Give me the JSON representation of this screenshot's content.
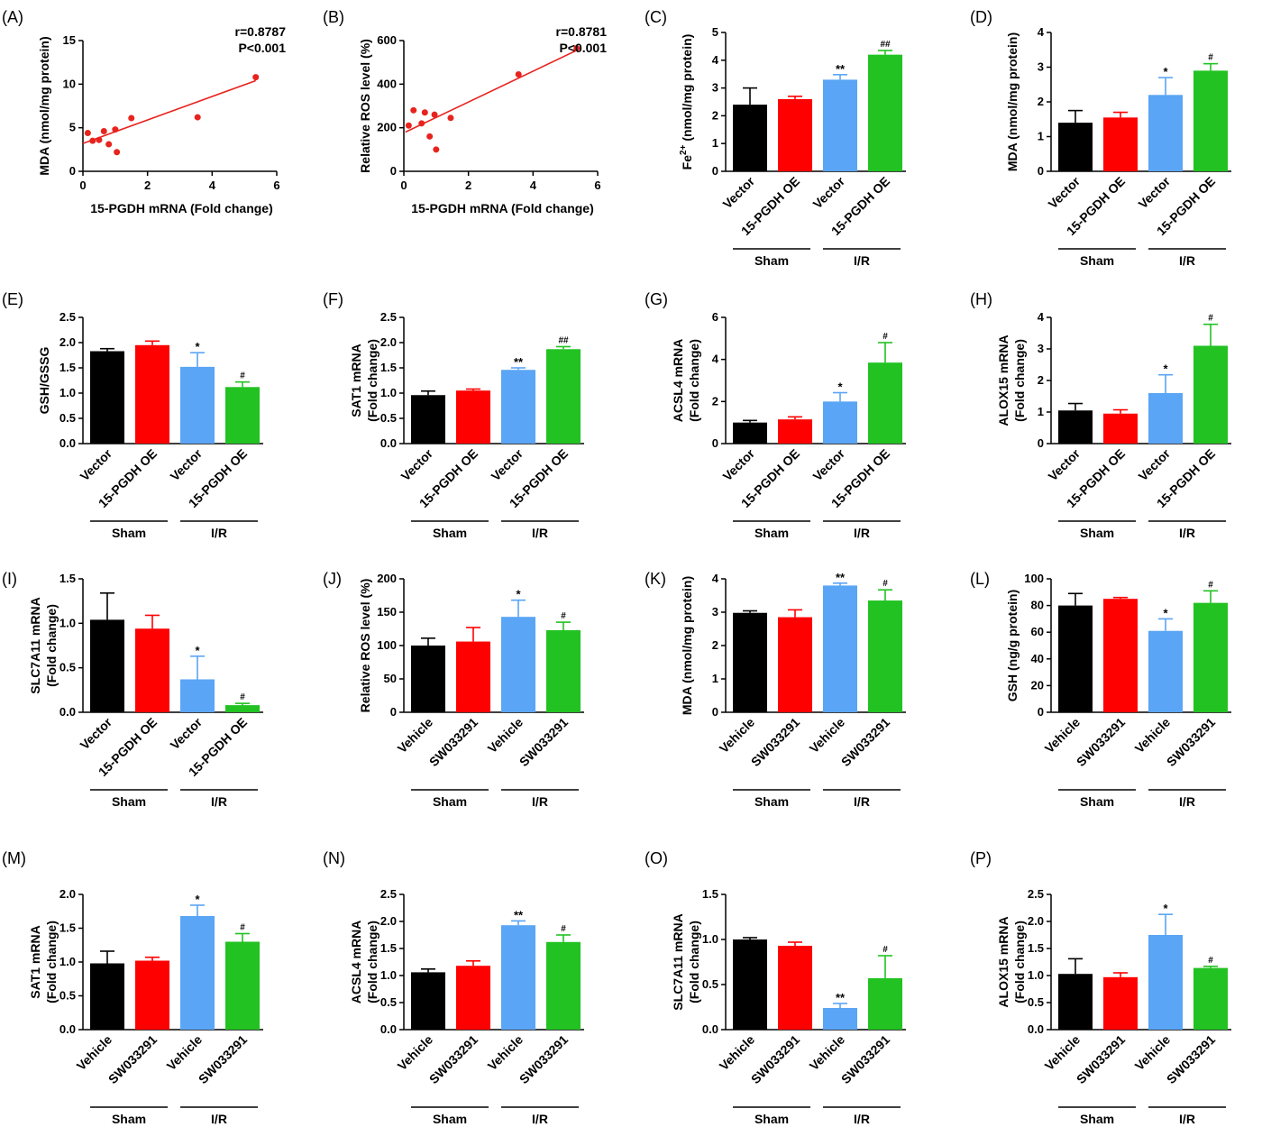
{
  "figure": {
    "colors": {
      "black": "#000000",
      "red": "#ff0000",
      "blue": "#5aa5f5",
      "green": "#22c222",
      "scatter": "#e8231e"
    }
  },
  "chart_data": [
    {
      "id": "A",
      "letter": "(A)",
      "type": "scatter",
      "ylabel": "MDA (nmol/mg protein)",
      "xlabel": "15-PGDH mRNA (Fold change)",
      "xlim": [
        0,
        6
      ],
      "ylim": [
        0,
        15
      ],
      "xticks": [
        "0",
        "2",
        "4",
        "6"
      ],
      "yticks": [
        "0",
        "5",
        "10",
        "15"
      ],
      "points": [
        [
          0.15,
          4.4
        ],
        [
          0.3,
          3.5
        ],
        [
          0.5,
          3.6
        ],
        [
          0.65,
          4.6
        ],
        [
          0.8,
          3.1
        ],
        [
          1.0,
          4.8
        ],
        [
          1.05,
          2.2
        ],
        [
          1.5,
          6.1
        ],
        [
          3.55,
          6.2
        ],
        [
          5.35,
          10.8
        ]
      ],
      "fit": [
        [
          0,
          3.2
        ],
        [
          5.35,
          10.4
        ]
      ],
      "stat_lines": [
        "r=0.8787",
        "P<0.001"
      ]
    },
    {
      "id": "B",
      "letter": "(B)",
      "type": "scatter",
      "ylabel": "Relative ROS level (%)",
      "xlabel": "15-PGDH mRNA (Fold change)",
      "xlim": [
        0,
        6
      ],
      "ylim": [
        0,
        600
      ],
      "xticks": [
        "0",
        "2",
        "4",
        "6"
      ],
      "yticks": [
        "0",
        "200",
        "400",
        "600"
      ],
      "points": [
        [
          0.15,
          210
        ],
        [
          0.3,
          280
        ],
        [
          0.55,
          220
        ],
        [
          0.65,
          270
        ],
        [
          0.8,
          160
        ],
        [
          0.95,
          260
        ],
        [
          1.0,
          100
        ],
        [
          1.45,
          245
        ],
        [
          3.55,
          445
        ],
        [
          5.35,
          565
        ]
      ],
      "fit": [
        [
          0.05,
          180
        ],
        [
          5.35,
          555
        ]
      ],
      "stat_lines": [
        "r=0.8781",
        "P<0.001"
      ]
    },
    {
      "id": "C",
      "letter": "(C)",
      "type": "bar",
      "ylabel": "Fe2+ (nmol/mg protein)",
      "ylabel_parts": [
        "Fe",
        "2+",
        " (nmol/mg protein)"
      ],
      "ylim": [
        0,
        5
      ],
      "yticks": [
        "0",
        "1",
        "2",
        "3",
        "4",
        "5"
      ],
      "categories": [
        "Vector",
        "15-PGDH OE",
        "Vector",
        "15-PGDH OE"
      ],
      "values": [
        2.4,
        2.6,
        3.3,
        4.2
      ],
      "errors": [
        0.6,
        0.1,
        0.18,
        0.15
      ],
      "sig": [
        "",
        "",
        "**",
        "##"
      ],
      "groups": [
        "Sham",
        "I/R"
      ]
    },
    {
      "id": "D",
      "letter": "(D)",
      "type": "bar",
      "ylabel": "MDA (nmol/mg protein)",
      "ylim": [
        0,
        4
      ],
      "yticks": [
        "0",
        "1",
        "2",
        "3",
        "4"
      ],
      "categories": [
        "Vector",
        "15-PGDH OE",
        "Vector",
        "15-PGDH OE"
      ],
      "values": [
        1.4,
        1.55,
        2.2,
        2.9
      ],
      "errors": [
        0.35,
        0.15,
        0.5,
        0.2
      ],
      "sig": [
        "",
        "",
        "*",
        "#"
      ],
      "groups": [
        "Sham",
        "I/R"
      ]
    },
    {
      "id": "E",
      "letter": "(E)",
      "type": "bar",
      "ylabel": "GSH/GSSG",
      "ylim": [
        0,
        2.5
      ],
      "yticks": [
        "0.0",
        "0.5",
        "1.0",
        "1.5",
        "2.0",
        "2.5"
      ],
      "categories": [
        "Vector",
        "15-PGDH OE",
        "Vector",
        "15-PGDH OE"
      ],
      "values": [
        1.83,
        1.95,
        1.52,
        1.12
      ],
      "errors": [
        0.05,
        0.08,
        0.28,
        0.1
      ],
      "sig": [
        "",
        "",
        "*",
        "#"
      ],
      "groups": [
        "Sham",
        "I/R"
      ]
    },
    {
      "id": "F",
      "letter": "(F)",
      "type": "bar",
      "ylabel": "SAT1 mRNA (Fold change)",
      "ylabel_lines": [
        "SAT1 mRNA",
        "(Fold change)"
      ],
      "ylim": [
        0,
        2.5
      ],
      "yticks": [
        "0.0",
        "0.5",
        "1.0",
        "1.5",
        "2.0",
        "2.5"
      ],
      "categories": [
        "Vector",
        "15-PGDH OE",
        "Vector",
        "15-PGDH OE"
      ],
      "values": [
        0.96,
        1.05,
        1.46,
        1.87
      ],
      "errors": [
        0.08,
        0.03,
        0.04,
        0.05
      ],
      "sig": [
        "",
        "",
        "**",
        "##"
      ],
      "groups": [
        "Sham",
        "I/R"
      ]
    },
    {
      "id": "G",
      "letter": "(G)",
      "type": "bar",
      "ylabel": "ACSL4 mRNA (Fold change)",
      "ylabel_lines": [
        "ACSL4 mRNA",
        "(Fold change)"
      ],
      "ylim": [
        0,
        6
      ],
      "yticks": [
        "0",
        "2",
        "4",
        "6"
      ],
      "categories": [
        "Vector",
        "15-PGDH OE",
        "Vector",
        "15-PGDH OE"
      ],
      "values": [
        1.0,
        1.15,
        2.0,
        3.85
      ],
      "errors": [
        0.1,
        0.12,
        0.42,
        0.95
      ],
      "sig": [
        "",
        "",
        "*",
        "#"
      ],
      "groups": [
        "Sham",
        "I/R"
      ]
    },
    {
      "id": "H",
      "letter": "(H)",
      "type": "bar",
      "ylabel": "ALOX15 mRNA (Fold change)",
      "ylabel_lines": [
        "ALOX15 mRNA",
        "(Fold change)"
      ],
      "ylim": [
        0,
        4
      ],
      "yticks": [
        "0",
        "1",
        "2",
        "3",
        "4"
      ],
      "categories": [
        "Vector",
        "15-PGDH OE",
        "Vector",
        "15-PGDH OE"
      ],
      "values": [
        1.05,
        0.95,
        1.6,
        3.1
      ],
      "errors": [
        0.22,
        0.12,
        0.58,
        0.68
      ],
      "sig": [
        "",
        "",
        "*",
        "#"
      ],
      "groups": [
        "Sham",
        "I/R"
      ]
    },
    {
      "id": "I",
      "letter": "(I)",
      "type": "bar",
      "ylabel": "SLC7A11 mRNA (Fold change)",
      "ylabel_lines": [
        "SLC7A11 mRNA",
        "(Fold change)"
      ],
      "ylim": [
        0,
        1.5
      ],
      "yticks": [
        "0.0",
        "0.5",
        "1.0",
        "1.5"
      ],
      "categories": [
        "Vector",
        "15-PGDH OE",
        "Vector",
        "15-PGDH OE"
      ],
      "values": [
        1.04,
        0.94,
        0.37,
        0.08
      ],
      "errors": [
        0.3,
        0.15,
        0.26,
        0.02
      ],
      "sig": [
        "",
        "",
        "*",
        "#"
      ],
      "groups": [
        "Sham",
        "I/R"
      ]
    },
    {
      "id": "J",
      "letter": "(J)",
      "type": "bar",
      "ylabel": "Relative ROS level (%)",
      "ylim": [
        0,
        200
      ],
      "yticks": [
        "0",
        "50",
        "100",
        "150",
        "200"
      ],
      "categories": [
        "Vehicle",
        "SW033291",
        "Vehicle",
        "SW033291"
      ],
      "values": [
        100,
        106,
        143,
        123
      ],
      "errors": [
        11,
        21,
        25,
        12
      ],
      "sig": [
        "",
        "",
        "*",
        "#"
      ],
      "groups": [
        "Sham",
        "I/R"
      ]
    },
    {
      "id": "K",
      "letter": "(K)",
      "type": "bar",
      "ylabel": "MDA (nmol/mg protein)",
      "ylim": [
        0,
        4
      ],
      "yticks": [
        "0",
        "1",
        "2",
        "3",
        "4"
      ],
      "categories": [
        "Vehicle",
        "SW033291",
        "Vehicle",
        "SW033291"
      ],
      "values": [
        2.98,
        2.85,
        3.8,
        3.35
      ],
      "errors": [
        0.06,
        0.22,
        0.07,
        0.32
      ],
      "sig": [
        "",
        "",
        "**",
        "#"
      ],
      "groups": [
        "Sham",
        "I/R"
      ]
    },
    {
      "id": "L",
      "letter": "(L)",
      "type": "bar",
      "ylabel": "GSH (ng/g protein)",
      "ylim": [
        0,
        100
      ],
      "yticks": [
        "0",
        "20",
        "40",
        "60",
        "80",
        "100"
      ],
      "categories": [
        "Vehicle",
        "SW033291",
        "Vehicle",
        "SW033291"
      ],
      "values": [
        80,
        85,
        61,
        82
      ],
      "errors": [
        9,
        1,
        9,
        9
      ],
      "sig": [
        "",
        "",
        "*",
        "#"
      ],
      "groups": [
        "Sham",
        "I/R"
      ]
    },
    {
      "id": "M",
      "letter": "(M)",
      "type": "bar",
      "ylabel": "SAT1 mRNA (Fold change)",
      "ylabel_lines": [
        "SAT1 mRNA",
        "(Fold change)"
      ],
      "ylim": [
        0,
        2.0
      ],
      "yticks": [
        "0.0",
        "0.5",
        "1.0",
        "1.5",
        "2.0"
      ],
      "categories": [
        "Vehicle",
        "SW033291",
        "Vehicle",
        "SW033291"
      ],
      "values": [
        0.98,
        1.02,
        1.68,
        1.3
      ],
      "errors": [
        0.18,
        0.05,
        0.16,
        0.12
      ],
      "sig": [
        "",
        "",
        "*",
        "#"
      ],
      "groups": [
        "Sham",
        "I/R"
      ]
    },
    {
      "id": "N",
      "letter": "(N)",
      "type": "bar",
      "ylabel": "ACSL4 mRNA (Fold change)",
      "ylabel_lines": [
        "ACSL4 mRNA",
        "(Fold change)"
      ],
      "ylim": [
        0,
        2.5
      ],
      "yticks": [
        "0.0",
        "0.5",
        "1.0",
        "1.5",
        "2.0",
        "2.5"
      ],
      "categories": [
        "Vehicle",
        "SW033291",
        "Vehicle",
        "SW033291"
      ],
      "values": [
        1.06,
        1.18,
        1.93,
        1.62
      ],
      "errors": [
        0.06,
        0.09,
        0.08,
        0.13
      ],
      "sig": [
        "",
        "",
        "**",
        "#"
      ],
      "groups": [
        "Sham",
        "I/R"
      ]
    },
    {
      "id": "O",
      "letter": "(O)",
      "type": "bar",
      "ylabel": "SLC7A11 mRNA (Fold change)",
      "ylabel_lines": [
        "SLC7A11 mRNA",
        "(Fold change)"
      ],
      "ylim": [
        0,
        1.5
      ],
      "yticks": [
        "0.0",
        "0.5",
        "1.0",
        "1.5"
      ],
      "categories": [
        "Vehicle",
        "SW033291",
        "Vehicle",
        "SW033291"
      ],
      "values": [
        1.0,
        0.93,
        0.24,
        0.57
      ],
      "errors": [
        0.02,
        0.04,
        0.05,
        0.25
      ],
      "sig": [
        "",
        "",
        "**",
        "#"
      ],
      "groups": [
        "Sham",
        "I/R"
      ]
    },
    {
      "id": "P",
      "letter": "(P)",
      "type": "bar",
      "ylabel": "ALOX15 mRNA (Fold change)",
      "ylabel_lines": [
        "ALOX15 mRNA",
        "(Fold change)"
      ],
      "ylim": [
        0,
        2.5
      ],
      "yticks": [
        "0.0",
        "0.5",
        "1.0",
        "1.5",
        "2.0",
        "2.5"
      ],
      "categories": [
        "Vehicle",
        "SW033291",
        "Vehicle",
        "SW033291"
      ],
      "values": [
        1.03,
        0.97,
        1.75,
        1.14
      ],
      "errors": [
        0.28,
        0.08,
        0.38,
        0.03
      ],
      "sig": [
        "",
        "",
        "*",
        "#"
      ],
      "groups": [
        "Sham",
        "I/R"
      ]
    }
  ]
}
